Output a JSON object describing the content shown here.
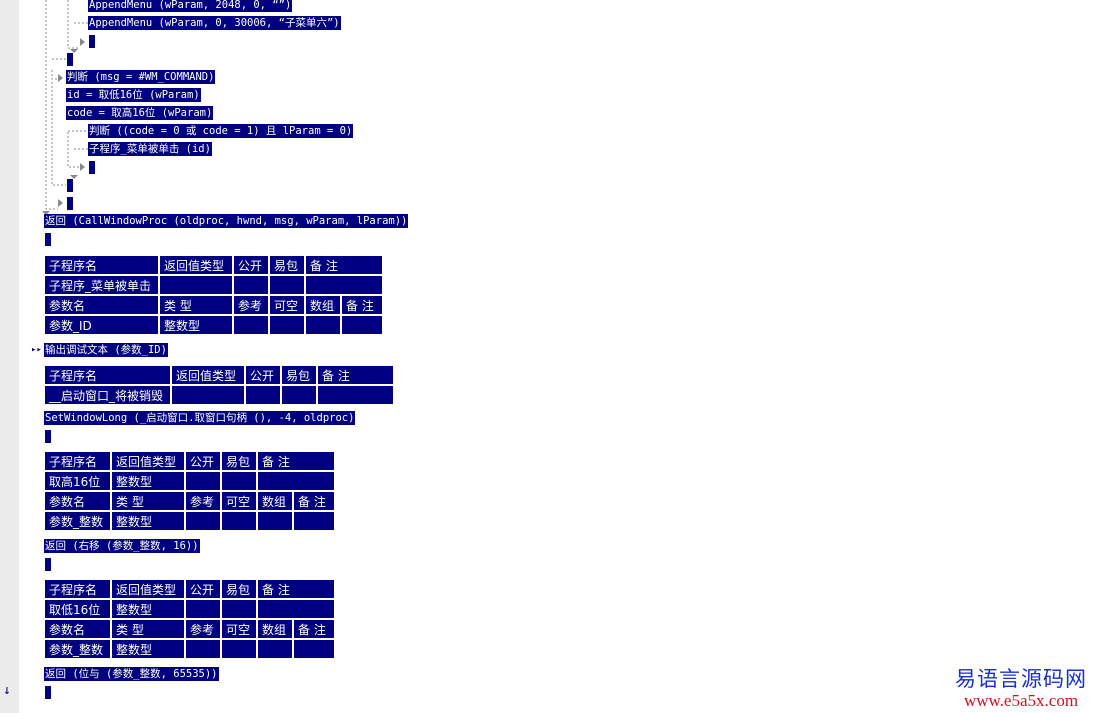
{
  "code_lines": [
    "AppendMenu (wParam, 2048, 0, “”)",
    "AppendMenu (wParam, 0, 30006, “子菜单六”)",
    "判断 (msg = #WM_COMMAND)",
    "id = 取低16位 (wParam)",
    "code = 取高16位 (wParam)",
    "判断 ((code = 0 或 code = 1) 且 lParam = 0)",
    "子程序_菜单被单击 (id)",
    "返回 (CallWindowProc (oldproc, hwnd, msg, wParam, lParam))",
    "输出调试文本 (参数_ID)",
    "SetWindowLong (_启动窗口.取窗口句柄 (), -4, oldproc)",
    "返回 (右移 (参数_整数, 16))",
    "返回 (位与 (参数_整数, 65535))"
  ],
  "sub_header": [
    "子程序名",
    "返回值类型",
    "公开",
    "易包",
    "备 注"
  ],
  "param_header": [
    "参数名",
    "类 型",
    "参考",
    "可空",
    "数组",
    "备 注"
  ],
  "tables": [
    {
      "name": "子程序_菜单被单击",
      "return_type": "",
      "param_name": "参数_ID",
      "param_type": "整数型"
    },
    {
      "name": "__启动窗口_将被销毁",
      "return_type": ""
    },
    {
      "name": "取高16位",
      "return_type": "整数型",
      "param_name": "参数_整数",
      "param_type": "整数型"
    },
    {
      "name": "取低16位",
      "return_type": "整数型",
      "param_name": "参数_整数",
      "param_type": "整数型"
    }
  ],
  "markers": {
    "breakpoint": "▸▸",
    "scroll_down": "↓"
  },
  "watermark": {
    "title": "易语言源码网",
    "url": "www.e5a5x.com"
  },
  "colors": {
    "highlight": "#000080",
    "gutter": "#ececec"
  }
}
